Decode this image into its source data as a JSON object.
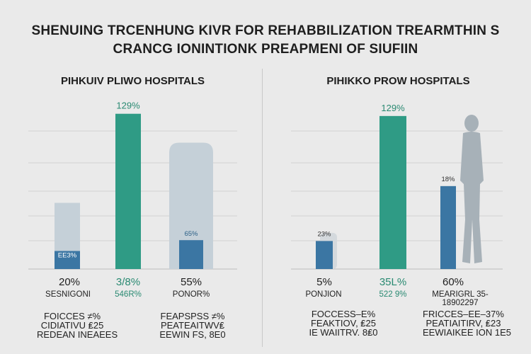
{
  "header": {
    "title_line1": "SHENUING TRCENHUNG KIVR FOR REHABBILIZATION TREARMTHIN S",
    "title_line2": "CRANCG IONINTIONK PREAPMENI OF SIUFIIN"
  },
  "colors": {
    "teal": "#2f9b85",
    "blue": "#3b76a3",
    "pale": "#c5d0d8",
    "label_teal": "#2a8a72",
    "silhouette": "#a7b1b8"
  },
  "chart_data": [
    {
      "type": "bar",
      "title": "PIHKUIV PLIWO HOSPITALS",
      "ylim": [
        0,
        130
      ],
      "grid": true,
      "bars": [
        {
          "category": "SESNIGONI",
          "main_value": 55,
          "main_color": "pale",
          "inner_value": 15,
          "inner_label": "EE3%",
          "value_label": "20%",
          "sub_label": "SESNIGONI"
        },
        {
          "category": "546R%",
          "main_value": 129,
          "main_color": "teal",
          "inner_value": null,
          "inner_label": "129%",
          "value_label": "3/8%",
          "sub_label": "546R%"
        },
        {
          "category": "PONOR%",
          "main_value": 105,
          "main_color": "pale",
          "inner_value": 24,
          "inner_label": "65%",
          "value_label": "55%",
          "sub_label": "PONOR%"
        }
      ],
      "notes": [
        {
          "lines": [
            "FOICCES ≠%",
            "CIDIATIVU ₤25",
            "REDEAN INEAEES"
          ]
        },
        {
          "lines": [
            "FEAPSPSS ≠%",
            "PEATEAITWV₤",
            "EEWIN FS, 8E0"
          ]
        }
      ]
    },
    {
      "type": "bar",
      "title": "PIHIKKO PROW HOSPITALS",
      "ylim": [
        0,
        130
      ],
      "grid": true,
      "bars": [
        {
          "category": "PONJION",
          "main_value": 24,
          "main_color": "blue",
          "ghost_value": 31,
          "inner_value": null,
          "inner_label": "23%",
          "value_label": "5%",
          "sub_label": "PONJION"
        },
        {
          "category": "522 9%",
          "main_value": 131,
          "main_color": "teal",
          "inner_value": null,
          "inner_label": "129%",
          "value_label": "35L%",
          "sub_label": "522 9%"
        },
        {
          "category": "MEARIGRL",
          "main_value": 71,
          "main_color": "blue",
          "inner_value": null,
          "inner_label": "18%",
          "value_label": "60%",
          "sub_label": "MEARIGRL 35-18902297"
        }
      ],
      "notes": [
        {
          "lines": [
            "FOCCESS–E%",
            "FEAKTIOV, ₤25",
            "IE WAIITRV. 8₤0"
          ]
        },
        {
          "lines": [
            "FRICCES–EE–37%",
            "PEATIAITIRV, ₤23",
            "EEWIAIKEE ION 1E5"
          ]
        }
      ]
    }
  ]
}
